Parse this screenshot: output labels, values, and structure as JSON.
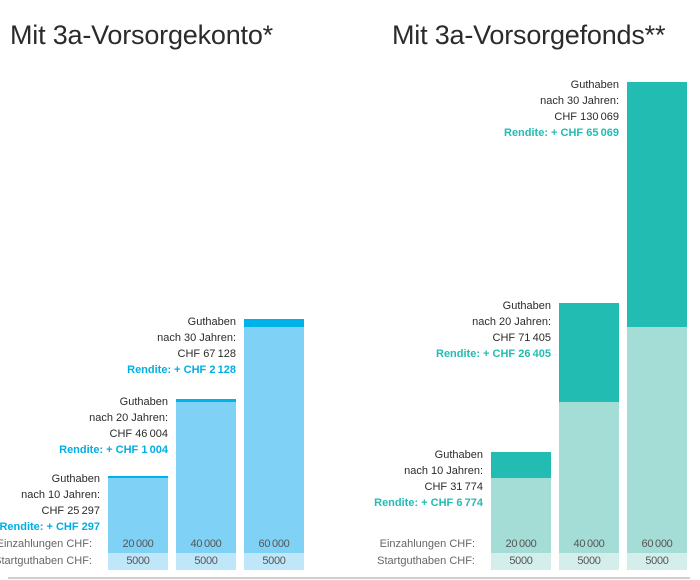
{
  "colors": {
    "konto_fill": "#7fd2f5",
    "konto_gain": "#00b2ea",
    "konto_start": "#bfe7f9",
    "konto_text": "#00aee4",
    "fonds_fill": "#a4dcd6",
    "fonds_gain": "#22bcb3",
    "fonds_start": "#d3eeeb",
    "fonds_text": "#22bcb3"
  },
  "row_labels": {
    "einzahlungen": "Einzahlungen CHF:",
    "start": "Startguthaben CHF:"
  },
  "chart_data": [
    {
      "type": "bar",
      "title": "Mit 3a-Vorsorgekonto*",
      "categories": [
        "10 Jahre",
        "20 Jahre",
        "30 Jahre"
      ],
      "series": [
        {
          "name": "Startguthaben CHF",
          "values": [
            5000,
            5000,
            5000
          ]
        },
        {
          "name": "Einzahlungen CHF",
          "values": [
            20000,
            40000,
            60000
          ]
        },
        {
          "name": "Rendite CHF",
          "values": [
            297,
            1004,
            2128
          ]
        }
      ],
      "einzahlungen_labels": [
        "20000",
        "40000",
        "60000"
      ],
      "start_labels": [
        "5000",
        "5000",
        "5000"
      ],
      "annotations": [
        {
          "l1": "Guthaben",
          "l2": "nach 10 Jahren:",
          "l3": "CHF 25297",
          "rendite": "Rendite: + CHF 297"
        },
        {
          "l1": "Guthaben",
          "l2": "nach 20 Jahren:",
          "l3": "CHF 46004",
          "rendite": "Rendite: + CHF 1004"
        },
        {
          "l1": "Guthaben",
          "l2": "nach 30 Jahren:",
          "l3": "CHF 67128",
          "rendite": "Rendite: + CHF 2128"
        }
      ],
      "totals": [
        25297,
        46004,
        67128
      ]
    },
    {
      "type": "bar",
      "title": "Mit 3a-Vorsorgefonds**",
      "categories": [
        "10 Jahre",
        "20 Jahre",
        "30 Jahre"
      ],
      "series": [
        {
          "name": "Startguthaben CHF",
          "values": [
            5000,
            5000,
            5000
          ]
        },
        {
          "name": "Einzahlungen CHF",
          "values": [
            20000,
            40000,
            60000
          ]
        },
        {
          "name": "Rendite CHF",
          "values": [
            6774,
            26405,
            65069
          ]
        }
      ],
      "einzahlungen_labels": [
        "20000",
        "40000",
        "60000"
      ],
      "start_labels": [
        "5000",
        "5000",
        "5000"
      ],
      "annotations": [
        {
          "l1": "Guthaben",
          "l2": "nach 10 Jahren:",
          "l3": "CHF 31774",
          "rendite": "Rendite: + CHF 6774"
        },
        {
          "l1": "Guthaben",
          "l2": "nach 20 Jahren:",
          "l3": "CHF 71405",
          "rendite": "Rendite: + CHF 26405"
        },
        {
          "l1": "Guthaben",
          "l2": "nach 30 Jahren:",
          "l3": "CHF 130069",
          "rendite": "Rendite: + CHF 65069"
        }
      ],
      "totals": [
        31774,
        71405,
        130069
      ]
    }
  ]
}
